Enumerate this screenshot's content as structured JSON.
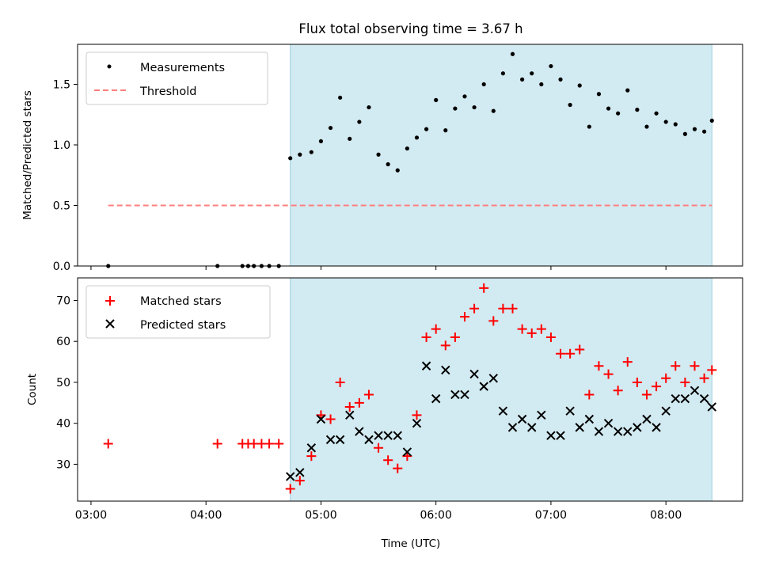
{
  "title": "Flux total observing time = 3.67 h",
  "colors": {
    "shade": "#add8e6",
    "threshold": "#ff7f7f",
    "matched": "#ff0000",
    "predicted": "#000000",
    "measure": "#000000"
  },
  "chart_data": [
    {
      "type": "scatter",
      "ylabel": "Matched/Predicted stars",
      "ylim": [
        0,
        1.83
      ],
      "yticks": [
        "0.0",
        "0.5",
        "1.0",
        "1.5"
      ],
      "xlim": [
        "02:53",
        "08:40"
      ],
      "shaded_span": [
        "04:44",
        "08:24"
      ],
      "legend": {
        "position": "upper-left",
        "entries": [
          "Measurements",
          "Threshold"
        ]
      },
      "threshold": {
        "name": "Threshold",
        "y": 0.5,
        "x": [
          "03:09",
          "08:24"
        ]
      },
      "series": [
        {
          "name": "Measurements",
          "x": [
            "03:09",
            "04:06",
            "04:19",
            "04:22",
            "04:25",
            "04:29",
            "04:33",
            "04:38",
            "04:44",
            "04:49",
            "04:55",
            "05:00",
            "05:05",
            "05:10",
            "05:15",
            "05:20",
            "05:25",
            "05:30",
            "05:35",
            "05:40",
            "05:45",
            "05:50",
            "05:55",
            "06:00",
            "06:05",
            "06:10",
            "06:15",
            "06:20",
            "06:25",
            "06:30",
            "06:35",
            "06:40",
            "06:45",
            "06:50",
            "06:55",
            "07:00",
            "07:05",
            "07:10",
            "07:15",
            "07:20",
            "07:25",
            "07:30",
            "07:35",
            "07:40",
            "07:45",
            "07:50",
            "07:55",
            "08:00",
            "08:05",
            "08:10",
            "08:15",
            "08:20",
            "08:24"
          ],
          "y": [
            0,
            0,
            0,
            0,
            0,
            0,
            0,
            0,
            0.89,
            0.92,
            0.94,
            1.03,
            1.14,
            1.39,
            1.05,
            1.19,
            1.31,
            0.92,
            0.84,
            0.79,
            0.97,
            1.06,
            1.13,
            1.37,
            1.12,
            1.3,
            1.4,
            1.31,
            1.5,
            1.28,
            1.59,
            1.75,
            1.54,
            1.59,
            1.5,
            1.65,
            1.54,
            1.33,
            1.49,
            1.15,
            1.42,
            1.3,
            1.26,
            1.45,
            1.29,
            1.15,
            1.26,
            1.19,
            1.17,
            1.09,
            1.13,
            1.11,
            1.2
          ]
        }
      ]
    },
    {
      "type": "scatter",
      "xlabel": "Time (UTC)",
      "ylabel": "Count",
      "ylim": [
        21,
        75.5
      ],
      "yticks": [
        "30",
        "40",
        "50",
        "60",
        "70"
      ],
      "xlim": [
        "02:53",
        "08:40"
      ],
      "xticks": [
        "03:00",
        "04:00",
        "05:00",
        "06:00",
        "07:00",
        "08:00"
      ],
      "shaded_span": [
        "04:44",
        "08:24"
      ],
      "legend": {
        "position": "upper-left",
        "entries": [
          "Matched stars",
          "Predicted stars"
        ]
      },
      "series": [
        {
          "name": "Matched stars",
          "marker": "+",
          "x": [
            "03:09",
            "04:06",
            "04:19",
            "04:22",
            "04:25",
            "04:29",
            "04:33",
            "04:38",
            "04:44",
            "04:49",
            "04:55",
            "05:00",
            "05:05",
            "05:10",
            "05:15",
            "05:20",
            "05:25",
            "05:30",
            "05:35",
            "05:40",
            "05:45",
            "05:50",
            "05:55",
            "06:00",
            "06:05",
            "06:10",
            "06:15",
            "06:20",
            "06:25",
            "06:30",
            "06:35",
            "06:40",
            "06:45",
            "06:50",
            "06:55",
            "07:00",
            "07:05",
            "07:10",
            "07:15",
            "07:20",
            "07:25",
            "07:30",
            "07:35",
            "07:40",
            "07:45",
            "07:50",
            "07:55",
            "08:00",
            "08:05",
            "08:10",
            "08:15",
            "08:20",
            "08:24"
          ],
          "y": [
            35,
            35,
            35,
            35,
            35,
            35,
            35,
            35,
            24,
            26,
            32,
            42,
            41,
            50,
            44,
            45,
            47,
            34,
            31,
            29,
            32,
            42,
            61,
            63,
            59,
            61,
            66,
            68,
            73,
            65,
            68,
            68,
            63,
            62,
            63,
            61,
            57,
            57,
            58,
            47,
            54,
            52,
            48,
            55,
            50,
            47,
            49,
            51,
            54,
            50,
            54,
            51,
            53
          ]
        },
        {
          "name": "Predicted stars",
          "marker": "x",
          "x": [
            "04:44",
            "04:49",
            "04:55",
            "05:00",
            "05:05",
            "05:10",
            "05:15",
            "05:20",
            "05:25",
            "05:30",
            "05:35",
            "05:40",
            "05:45",
            "05:50",
            "05:55",
            "06:00",
            "06:05",
            "06:10",
            "06:15",
            "06:20",
            "06:25",
            "06:30",
            "06:35",
            "06:40",
            "06:45",
            "06:50",
            "06:55",
            "07:00",
            "07:05",
            "07:10",
            "07:15",
            "07:20",
            "07:25",
            "07:30",
            "07:35",
            "07:40",
            "07:45",
            "07:50",
            "07:55",
            "08:00",
            "08:05",
            "08:10",
            "08:15",
            "08:20",
            "08:24"
          ],
          "y": [
            27,
            28,
            34,
            41,
            36,
            36,
            42,
            38,
            36,
            37,
            37,
            37,
            33,
            40,
            54,
            46,
            53,
            47,
            47,
            52,
            49,
            51,
            43,
            39,
            41,
            39,
            42,
            37,
            37,
            43,
            39,
            41,
            38,
            40,
            38,
            38,
            39,
            41,
            39,
            43,
            46,
            46,
            48,
            46,
            44
          ]
        }
      ]
    }
  ]
}
